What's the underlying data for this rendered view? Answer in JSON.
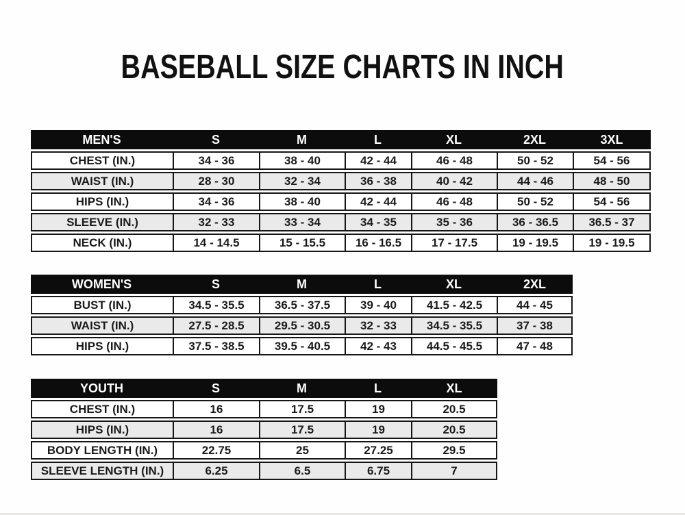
{
  "page": {
    "title": "BASEBALL SIZE CHARTS IN INCH"
  },
  "colors": {
    "header_bg": "#0c0c0c",
    "header_text": "#ffffff",
    "row_bg": "#ffffff",
    "row_alt_bg": "#eaeaea",
    "border": "#161616",
    "text": "#1a1a1a"
  },
  "tables": [
    {
      "name": "mens",
      "header_label": "MEN'S",
      "columns": [
        "S",
        "M",
        "L",
        "XL",
        "2XL",
        "3XL"
      ],
      "rows": [
        {
          "label": "CHEST (IN.)",
          "values": [
            "34 - 36",
            "38 - 40",
            "42 - 44",
            "46 - 48",
            "50 - 52",
            "54 - 56"
          ]
        },
        {
          "label": "WAIST (IN.)",
          "values": [
            "28 - 30",
            "32 - 34",
            "36 - 38",
            "40 - 42",
            "44 - 46",
            "48 - 50"
          ]
        },
        {
          "label": "HIPS (IN.)",
          "values": [
            "34 - 36",
            "38 - 40",
            "42 - 44",
            "46 - 48",
            "50 - 52",
            "54 - 56"
          ]
        },
        {
          "label": "SLEEVE (IN.)",
          "values": [
            "32 - 33",
            "33 - 34",
            "34 - 35",
            "35 - 36",
            "36 - 36.5",
            "36.5 - 37"
          ]
        },
        {
          "label": "NECK (IN.)",
          "values": [
            "14 - 14.5",
            "15 - 15.5",
            "16 - 16.5",
            "17 - 17.5",
            "19 - 19.5",
            "19 - 19.5"
          ]
        }
      ]
    },
    {
      "name": "womens",
      "header_label": "WOMEN'S",
      "columns": [
        "S",
        "M",
        "L",
        "XL",
        "2XL"
      ],
      "rows": [
        {
          "label": "BUST (IN.)",
          "values": [
            "34.5 - 35.5",
            "36.5 - 37.5",
            "39 - 40",
            "41.5 - 42.5",
            "44 - 45"
          ]
        },
        {
          "label": "WAIST (IN.)",
          "values": [
            "27.5 - 28.5",
            "29.5 - 30.5",
            "32 - 33",
            "34.5 - 35.5",
            "37 - 38"
          ]
        },
        {
          "label": "HIPS (IN.)",
          "values": [
            "37.5 - 38.5",
            "39.5 - 40.5",
            "42 - 43",
            "44.5 - 45.5",
            "47 - 48"
          ]
        }
      ]
    },
    {
      "name": "youth",
      "header_label": "YOUTH",
      "columns": [
        "S",
        "M",
        "L",
        "XL"
      ],
      "rows": [
        {
          "label": "CHEST (IN.)",
          "values": [
            "16",
            "17.5",
            "19",
            "20.5"
          ]
        },
        {
          "label": "HIPS (IN.)",
          "values": [
            "16",
            "17.5",
            "19",
            "20.5"
          ]
        },
        {
          "label": "BODY LENGTH (IN.)",
          "values": [
            "22.75",
            "25",
            "27.25",
            "29.5"
          ]
        },
        {
          "label": "SLEEVE LENGTH (IN.)",
          "values": [
            "6.25",
            "6.5",
            "6.75",
            "7"
          ]
        }
      ]
    }
  ]
}
